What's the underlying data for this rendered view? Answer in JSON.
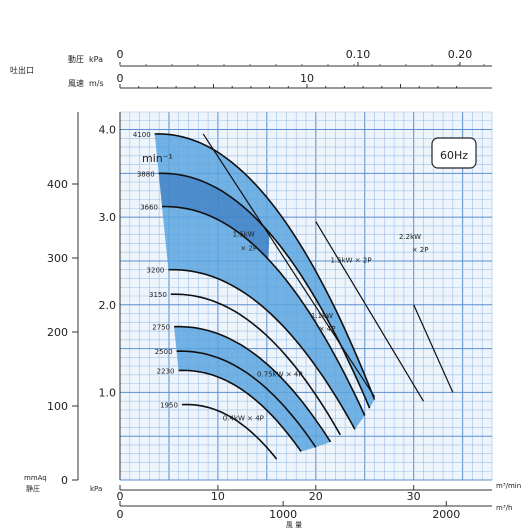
{
  "badge": "60Hz",
  "outlet": {
    "label": "吐出口",
    "dyn_label": "動圧",
    "dyn_unit": "kPa",
    "vel_label": "風速",
    "vel_unit": "m/s",
    "dyn_ticks": [
      "0",
      "0.10",
      "0.20"
    ],
    "vel_ticks": [
      "0",
      "10"
    ]
  },
  "chart_data": {
    "type": "line",
    "rpm_unit": "min⁻¹",
    "static_pressure_label": "静圧",
    "mmaq_unit": "mmAq",
    "kpa_unit": "kPa",
    "flow_label": "風 量",
    "flow_unit_min": "m³/min",
    "flow_unit_h": "m³/h",
    "mmaq_ticks": [
      "0",
      "100",
      "200",
      "300",
      "400"
    ],
    "kpa_ticks": [
      "1.0",
      "2.0",
      "3.0",
      "4.0"
    ],
    "flow_min_ticks": [
      "0",
      "10",
      "20",
      "30"
    ],
    "flow_h_ticks": [
      "0",
      "1000",
      "2000"
    ],
    "xlim": [
      0,
      38
    ],
    "ylim": [
      0,
      4.2
    ],
    "speed_curves": [
      {
        "rpm": "4100",
        "p0": 3.95,
        "xend": 26.0
      },
      {
        "rpm": "3880",
        "p0": 3.5,
        "xend": 25.5
      },
      {
        "rpm": "3660",
        "p0": 3.12,
        "xend": 25.0
      },
      {
        "rpm": "3200",
        "p0": 2.4,
        "xend": 24.0
      },
      {
        "rpm": "3150",
        "p0": 2.12,
        "xend": 22.5
      },
      {
        "rpm": "2750",
        "p0": 1.75,
        "xend": 21.5
      },
      {
        "rpm": "2500",
        "p0": 1.47,
        "xend": 20.0
      },
      {
        "rpm": "2230",
        "p0": 1.25,
        "xend": 18.5
      },
      {
        "rpm": "1950",
        "p0": 0.86,
        "xend": 16.0
      }
    ],
    "power_labels": [
      {
        "text": "2.2kW",
        "x": 28.5,
        "y": 2.75
      },
      {
        "text": "× 2P",
        "x": 29.8,
        "y": 2.6
      },
      {
        "text": "1.5kW × 2P",
        "x": 21.5,
        "y": 2.48
      },
      {
        "text": "1.5kW",
        "x": 11.5,
        "y": 2.78
      },
      {
        "text": "× 2P",
        "x": 12.3,
        "y": 2.62
      },
      {
        "text": "1.1kW",
        "x": 19.5,
        "y": 1.85
      },
      {
        "text": "× 4P",
        "x": 20.3,
        "y": 1.7
      },
      {
        "text": "0.75kW × 4P",
        "x": 14.0,
        "y": 1.18
      },
      {
        "text": "0.4kW × 4P",
        "x": 10.5,
        "y": 0.68
      }
    ]
  }
}
